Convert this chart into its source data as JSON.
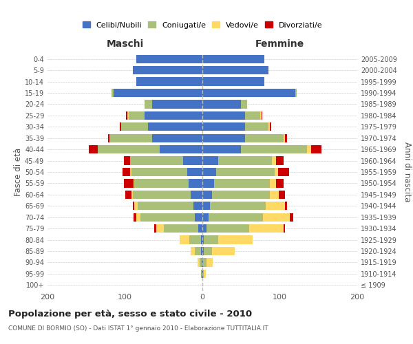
{
  "age_groups": [
    "100+",
    "95-99",
    "90-94",
    "85-89",
    "80-84",
    "75-79",
    "70-74",
    "65-69",
    "60-64",
    "55-59",
    "50-54",
    "45-49",
    "40-44",
    "35-39",
    "30-34",
    "25-29",
    "20-24",
    "15-19",
    "10-14",
    "5-9",
    "0-4"
  ],
  "birth_years": [
    "≤ 1909",
    "1910-1914",
    "1915-1919",
    "1920-1924",
    "1925-1929",
    "1930-1934",
    "1935-1939",
    "1940-1944",
    "1945-1949",
    "1950-1954",
    "1955-1959",
    "1960-1964",
    "1965-1969",
    "1970-1974",
    "1975-1979",
    "1980-1984",
    "1985-1989",
    "1990-1994",
    "1995-1999",
    "2000-2004",
    "2005-2009"
  ],
  "males": {
    "celibi": [
      0,
      1,
      1,
      2,
      2,
      5,
      10,
      12,
      15,
      18,
      20,
      25,
      55,
      65,
      70,
      75,
      65,
      115,
      85,
      90,
      85
    ],
    "coniugati": [
      0,
      1,
      3,
      8,
      15,
      45,
      70,
      72,
      75,
      70,
      72,
      68,
      80,
      55,
      35,
      20,
      10,
      2,
      0,
      0,
      0
    ],
    "vedovi": [
      0,
      0,
      2,
      5,
      12,
      10,
      5,
      4,
      2,
      1,
      1,
      0,
      0,
      0,
      0,
      2,
      0,
      0,
      0,
      0,
      0
    ],
    "divorziati": [
      0,
      0,
      0,
      0,
      0,
      2,
      4,
      2,
      8,
      12,
      10,
      8,
      12,
      2,
      2,
      2,
      0,
      0,
      0,
      0,
      0
    ]
  },
  "females": {
    "nubili": [
      0,
      1,
      1,
      2,
      2,
      5,
      8,
      10,
      12,
      15,
      18,
      20,
      50,
      55,
      55,
      55,
      50,
      120,
      80,
      85,
      80
    ],
    "coniugate": [
      0,
      1,
      4,
      10,
      18,
      55,
      70,
      72,
      75,
      72,
      75,
      70,
      85,
      50,
      30,
      20,
      8,
      2,
      0,
      0,
      0
    ],
    "vedove": [
      0,
      2,
      8,
      30,
      45,
      45,
      35,
      25,
      12,
      8,
      5,
      5,
      5,
      2,
      2,
      1,
      0,
      0,
      0,
      0,
      0
    ],
    "divorziate": [
      0,
      0,
      0,
      0,
      0,
      2,
      4,
      2,
      8,
      10,
      14,
      10,
      14,
      2,
      2,
      1,
      0,
      0,
      0,
      0,
      0
    ]
  },
  "color_celibi": "#4472C4",
  "color_coniugati": "#AABF78",
  "color_vedovi": "#FFD966",
  "color_divorziati": "#CC0000",
  "title": "Popolazione per età, sesso e stato civile - 2010",
  "subtitle": "COMUNE DI BORMIO (SO) - Dati ISTAT 1° gennaio 2010 - Elaborazione TUTTITALIA.IT",
  "ylabel_left": "Fasce di età",
  "ylabel_right": "Anni di nascita",
  "xlabel_maschi": "Maschi",
  "xlabel_femmine": "Femmine",
  "xlim": 200,
  "bg_color": "#ffffff",
  "grid_color": "#cccccc"
}
